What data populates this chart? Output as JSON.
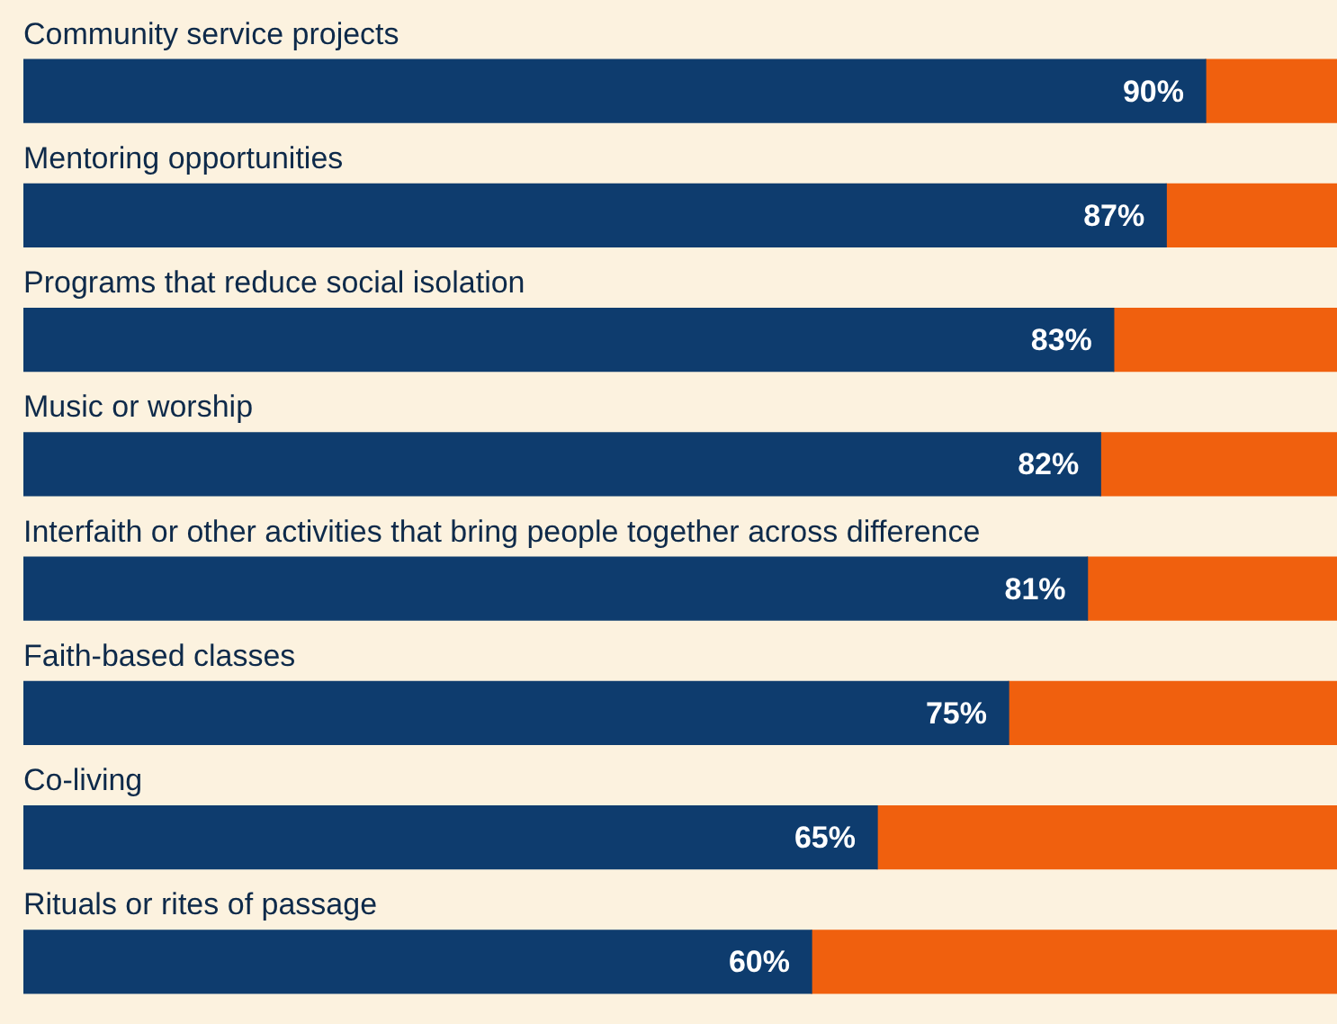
{
  "chart_data": {
    "type": "bar",
    "orientation": "horizontal",
    "stacked": true,
    "categories": [
      "Community service projects",
      "Mentoring opportunities",
      "Programs that reduce social isolation",
      "Music or worship",
      "Interfaith or other activities that bring people together across difference",
      "Faith-based classes",
      "Co-living",
      "Rituals or rites of passage"
    ],
    "series": [
      {
        "color": "#0e3c6e",
        "values": [
          90,
          87,
          83,
          82,
          81,
          75,
          65,
          60
        ],
        "value_labels": [
          "90%",
          "87%",
          "83%",
          "82%",
          "81%",
          "75%",
          "65%",
          "60%"
        ]
      },
      {
        "color": "#f0600e",
        "values": [
          10,
          13,
          17,
          18,
          19,
          25,
          35,
          40
        ]
      }
    ],
    "xlim": [
      0,
      100
    ],
    "tick_labels": false
  }
}
